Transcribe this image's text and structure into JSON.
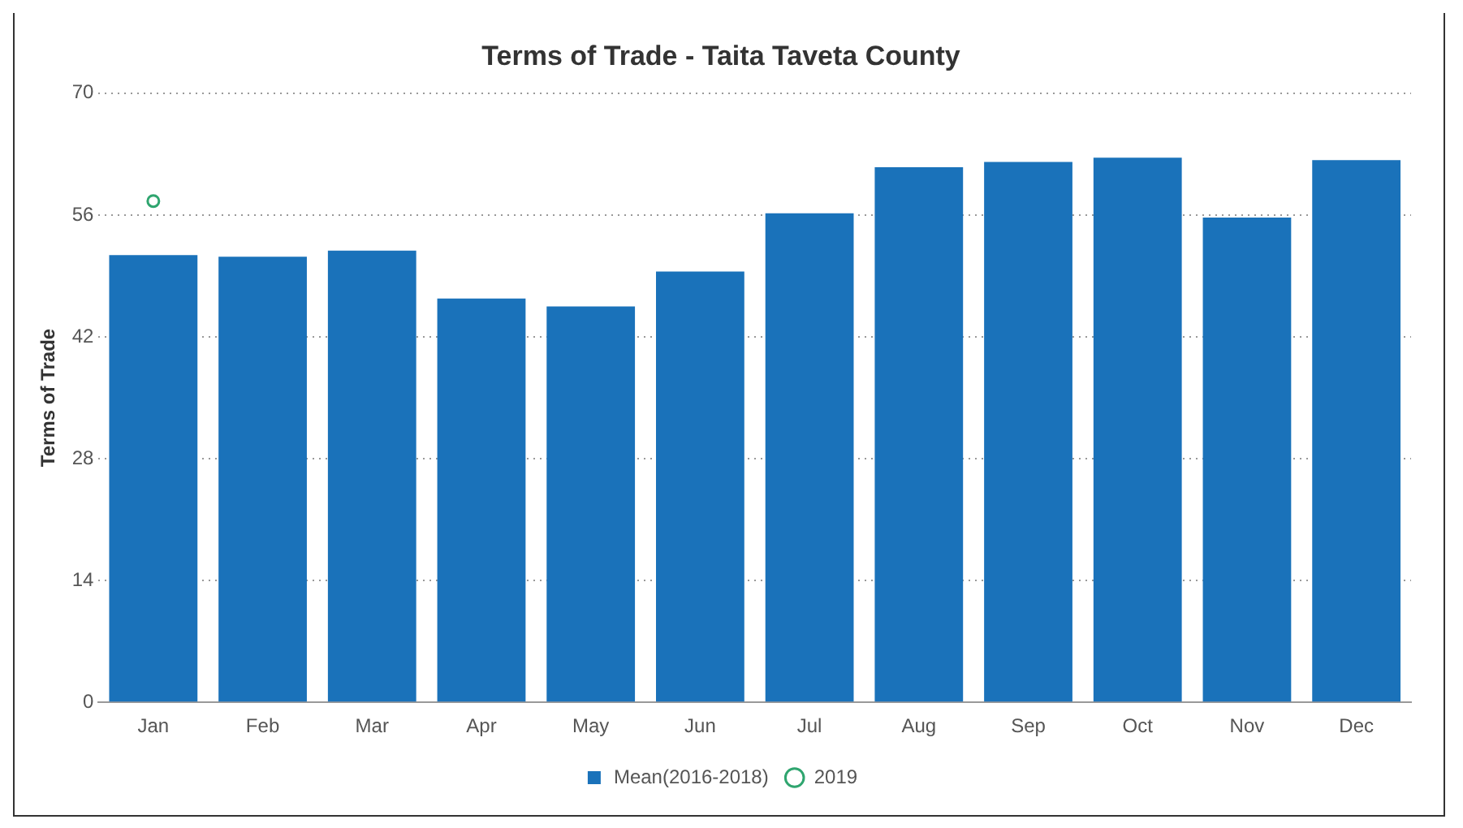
{
  "chart_data": {
    "type": "bar",
    "title": "Terms of Trade - Taita Taveta County",
    "ylabel": "Terms of Trade",
    "categories": [
      "Jan",
      "Feb",
      "Mar",
      "Apr",
      "May",
      "Jun",
      "Jul",
      "Aug",
      "Sep",
      "Oct",
      "Nov",
      "Dec"
    ],
    "series": [
      {
        "name": "Mean(2016-2018)",
        "color": "#1a72ba",
        "values": [
          51.4,
          51.2,
          51.9,
          46.4,
          45.5,
          49.5,
          56.2,
          61.5,
          62.1,
          62.6,
          55.7,
          62.3
        ]
      },
      {
        "name": "2019",
        "type": "scatter",
        "color": "#2fa56f",
        "values": [
          57.6,
          null,
          null,
          null,
          null,
          null,
          null,
          null,
          null,
          null,
          null,
          null
        ]
      }
    ],
    "ylim": [
      0,
      70
    ],
    "yticks": [
      0,
      14,
      28,
      42,
      56,
      70
    ],
    "grid": "y",
    "legend": "bottom",
    "marker": "circle"
  }
}
